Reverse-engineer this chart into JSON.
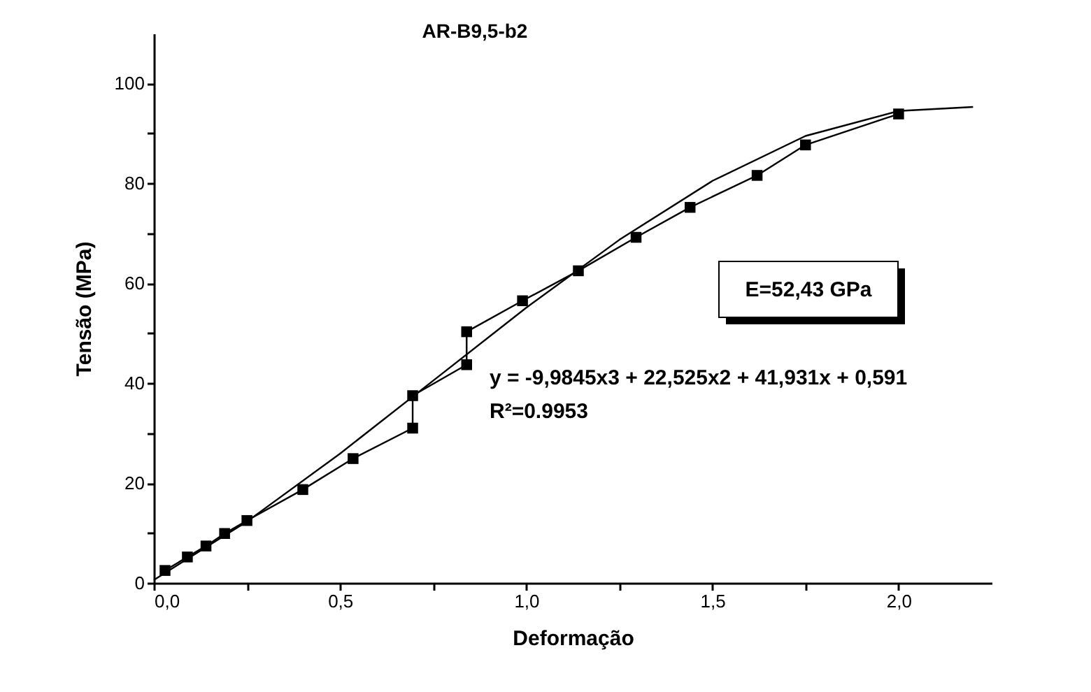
{
  "chart_data": {
    "type": "line",
    "title": "AR-B9,5-b2",
    "xlabel": "Deformação",
    "ylabel": "Tensão (MPa)",
    "xlim": [
      0,
      2.25
    ],
    "ylim": [
      0,
      110
    ],
    "xticks": [
      {
        "value": 0,
        "label": "0,0"
      },
      {
        "value": 0.25,
        "label": null
      },
      {
        "value": 0.5,
        "label": "0,5"
      },
      {
        "value": 0.75,
        "label": null
      },
      {
        "value": 1.0,
        "label": "1,0"
      },
      {
        "value": 1.25,
        "label": null
      },
      {
        "value": 1.5,
        "label": "1,5"
      },
      {
        "value": 1.75,
        "label": null
      },
      {
        "value": 2.0,
        "label": "2,0"
      }
    ],
    "yticks": [
      0,
      {
        "value": 10,
        "label": null
      },
      20,
      {
        "value": 30,
        "label": null
      },
      40,
      {
        "value": 50,
        "label": null
      },
      60,
      {
        "value": 70,
        "label": null
      },
      80,
      {
        "value": 90,
        "label": null
      },
      100
    ],
    "grid": false,
    "series": [
      {
        "marker": "square",
        "color": "#000000",
        "x": [
          0.03,
          0.09,
          0.14,
          0.19,
          0.25,
          0.4,
          0.535,
          0.695,
          0.695,
          0.84,
          0.84,
          0.99,
          1.14,
          1.295,
          1.44,
          1.62,
          1.75,
          2.0
        ],
        "values": [
          2.5,
          5.2,
          7.4,
          9.9,
          12.5,
          18.7,
          24.9,
          31.0,
          37.5,
          43.7,
          50.3,
          56.5,
          62.5,
          69.2,
          75.2,
          81.6,
          87.7,
          93.9
        ]
      },
      {
        "marker": "none",
        "color": "#000000",
        "x": [
          0,
          0.25,
          0.5,
          0.75,
          1.0,
          1.25,
          1.5,
          1.75,
          2.0,
          2.2
        ],
        "values": [
          0.6,
          12.3,
          25.9,
          40.5,
          55.1,
          68.7,
          80.5,
          89.5,
          94.5,
          95.3
        ]
      }
    ],
    "annotations": [
      "E=52,43 GPa",
      "y = -9,9845x3 + 22,525x2 + 41,931x + 0,591",
      "R²=0.9953"
    ]
  }
}
